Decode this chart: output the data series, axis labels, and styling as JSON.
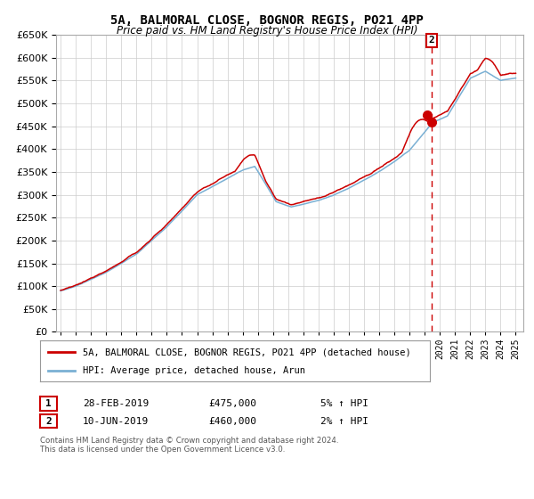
{
  "title": "5A, BALMORAL CLOSE, BOGNOR REGIS, PO21 4PP",
  "subtitle": "Price paid vs. HM Land Registry's House Price Index (HPI)",
  "red_label": "5A, BALMORAL CLOSE, BOGNOR REGIS, PO21 4PP (detached house)",
  "blue_label": "HPI: Average price, detached house, Arun",
  "annotation1_label": "1",
  "annotation1_date": "28-FEB-2019",
  "annotation1_price": "£475,000",
  "annotation1_hpi": "5% ↑ HPI",
  "annotation2_label": "2",
  "annotation2_date": "10-JUN-2019",
  "annotation2_price": "£460,000",
  "annotation2_hpi": "2% ↑ HPI",
  "footnote1": "Contains HM Land Registry data © Crown copyright and database right 2024.",
  "footnote2": "This data is licensed under the Open Government Licence v3.0.",
  "red_color": "#cc0000",
  "blue_color": "#7ab0d4",
  "dot_color": "#cc0000",
  "dashed_line_color": "#cc0000",
  "annotation_box_color": "#cc0000",
  "grid_color": "#cccccc",
  "bg_color": "#ffffff",
  "ylim": [
    0,
    650000
  ],
  "xlim_start": 1994.7,
  "xlim_end": 2025.5,
  "marker1_x": 2019.17,
  "marker1_y": 475000,
  "marker2_x": 2019.45,
  "marker2_y": 460000,
  "dashed_x": 2019.45
}
